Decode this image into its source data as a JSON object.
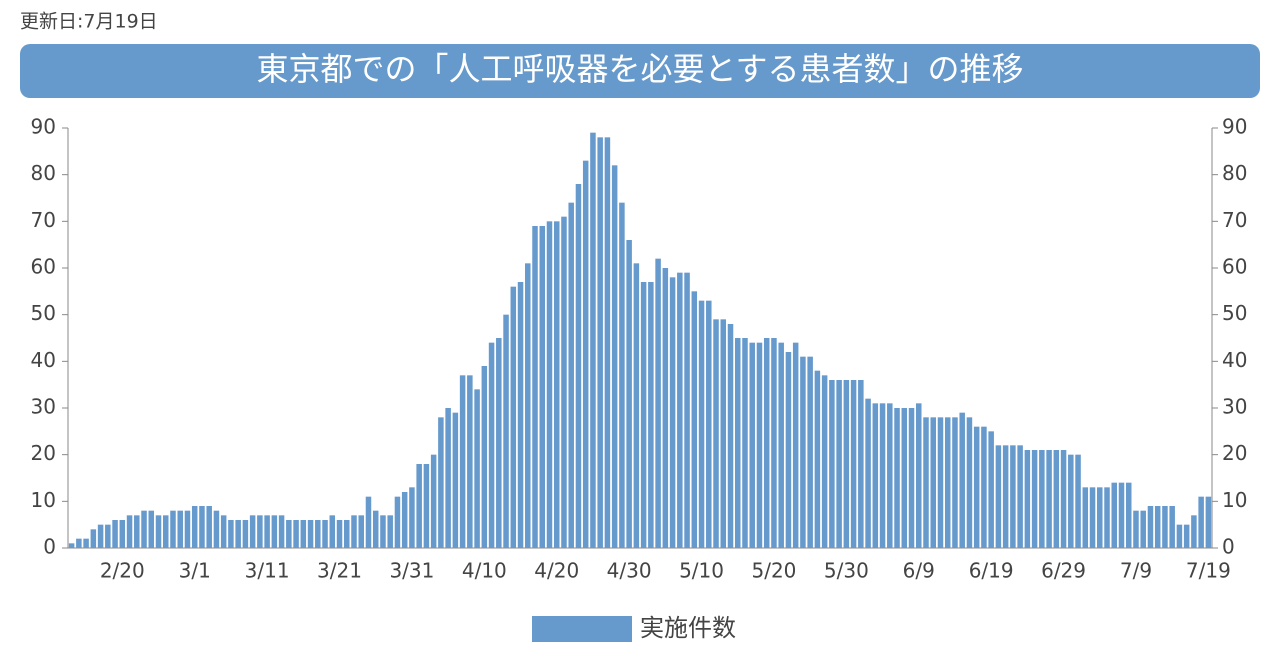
{
  "updated": "更新日:7月19日",
  "chart_data": {
    "type": "bar",
    "title": "東京都での「人工呼吸器を必要とする患者数」の推移",
    "categories": [
      null,
      null,
      null,
      null,
      null,
      null,
      null,
      "2/20",
      null,
      null,
      null,
      null,
      null,
      null,
      null,
      null,
      null,
      "3/1",
      null,
      null,
      null,
      null,
      null,
      null,
      null,
      null,
      null,
      "3/11",
      null,
      null,
      null,
      null,
      null,
      null,
      null,
      null,
      null,
      "3/21",
      null,
      null,
      null,
      null,
      null,
      null,
      null,
      null,
      null,
      "3/31",
      null,
      null,
      null,
      null,
      null,
      null,
      null,
      null,
      null,
      "4/10",
      null,
      null,
      null,
      null,
      null,
      null,
      null,
      null,
      null,
      "4/20",
      null,
      null,
      null,
      null,
      null,
      null,
      null,
      null,
      null,
      "4/30",
      null,
      null,
      null,
      null,
      null,
      null,
      null,
      null,
      null,
      "5/10",
      null,
      null,
      null,
      null,
      null,
      null,
      null,
      null,
      null,
      "5/20",
      null,
      null,
      null,
      null,
      null,
      null,
      null,
      null,
      null,
      "5/30",
      null,
      null,
      null,
      null,
      null,
      null,
      null,
      null,
      null,
      "6/9",
      null,
      null,
      null,
      null,
      null,
      null,
      null,
      null,
      null,
      "6/19",
      null,
      null,
      null,
      null,
      null,
      null,
      null,
      null,
      null,
      "6/29",
      null,
      null,
      null,
      null,
      null,
      null,
      null,
      null,
      null,
      "7/9",
      null,
      null,
      null,
      null,
      null,
      null,
      null,
      null,
      null,
      "7/19"
    ],
    "series": [
      {
        "name": "実施件数",
        "color": "#6699cc",
        "values": [
          1,
          2,
          2,
          4,
          5,
          5,
          6,
          6,
          7,
          7,
          8,
          8,
          7,
          7,
          8,
          8,
          8,
          9,
          9,
          9,
          8,
          7,
          6,
          6,
          6,
          7,
          7,
          7,
          7,
          7,
          6,
          6,
          6,
          6,
          6,
          6,
          7,
          6,
          6,
          7,
          7,
          11,
          8,
          7,
          7,
          11,
          12,
          13,
          18,
          18,
          20,
          28,
          30,
          29,
          37,
          37,
          34,
          39,
          44,
          45,
          50,
          56,
          57,
          61,
          69,
          69,
          70,
          70,
          71,
          74,
          78,
          83,
          89,
          88,
          88,
          82,
          74,
          66,
          61,
          57,
          57,
          62,
          60,
          58,
          59,
          59,
          55,
          53,
          53,
          49,
          49,
          48,
          45,
          45,
          44,
          44,
          45,
          45,
          44,
          42,
          44,
          41,
          41,
          38,
          37,
          36,
          36,
          36,
          36,
          36,
          32,
          31,
          31,
          31,
          30,
          30,
          30,
          31,
          28,
          28,
          28,
          28,
          28,
          29,
          28,
          26,
          26,
          25,
          22,
          22,
          22,
          22,
          21,
          21,
          21,
          21,
          21,
          21,
          20,
          20,
          13,
          13,
          13,
          13,
          14,
          14,
          14,
          8,
          8,
          9,
          9,
          9,
          9,
          5,
          5,
          7,
          11,
          11
        ]
      }
    ],
    "ylim": [
      0,
      90
    ],
    "yticks": [
      0,
      10,
      20,
      30,
      40,
      50,
      60,
      70,
      80,
      90
    ]
  }
}
